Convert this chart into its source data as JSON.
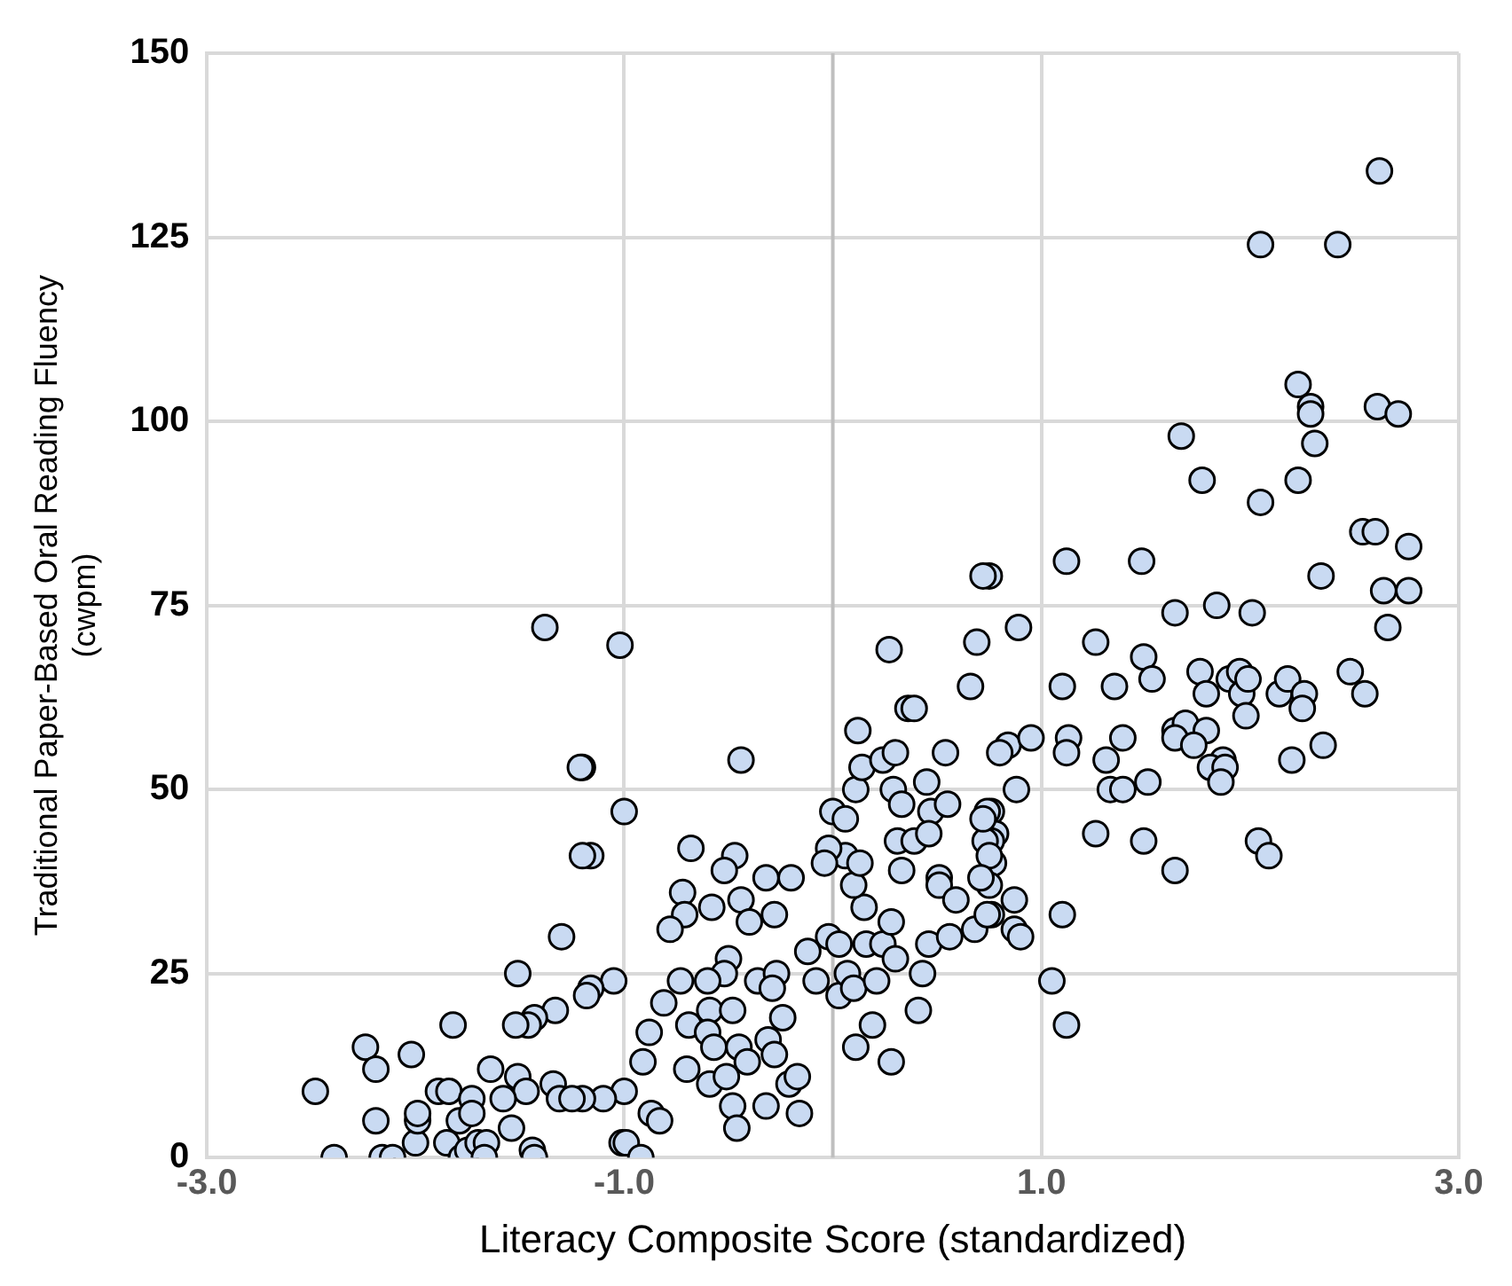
{
  "chart_data": {
    "type": "scatter",
    "xlabel": "Literacy Composite Score (standardized)",
    "ylabel": "Traditional Paper-Based Oral Reading Fluency\n(cwpm)",
    "xlim": [
      -3,
      3
    ],
    "xticks": [
      {
        "value": -3,
        "label": "-3.0"
      },
      {
        "value": -1,
        "label": "-1.0"
      },
      {
        "value": 1,
        "label": "1.0"
      },
      {
        "value": 3,
        "label": "3.0"
      }
    ],
    "ylim": [
      0,
      150
    ],
    "yticks": [
      0,
      25,
      50,
      75,
      100,
      125,
      150
    ],
    "grid": true,
    "marker": "circle",
    "legend": false,
    "ref_lines": [
      {
        "axis": "x",
        "value": 0,
        "color": "#bfbfbf"
      }
    ],
    "series": [
      {
        "color": "#c9daf2",
        "x": [
          2.62,
          2.05,
          2.42,
          2.23,
          2.29,
          2.29,
          2.31,
          2.61,
          2.71,
          1.67,
          1.77,
          2.05,
          2.23,
          1.12,
          1.48,
          2.34,
          2.54,
          2.6,
          2.76,
          2.64,
          2.76,
          0.75,
          0.72,
          1.64,
          1.84,
          2.01,
          2.66,
          0.89,
          1.26,
          1.1,
          1.35,
          1.49,
          1.53,
          0.84,
          0.95,
          1.13,
          1.12,
          1.31,
          1.39,
          1.33,
          1.39,
          1.51,
          0.88,
          0.76,
          0.78,
          0.76,
          0.77,
          0.75,
          0.87,
          0.76,
          0.87,
          0.9,
          1.1,
          1.05,
          1.12,
          1.26,
          1.49,
          1.64,
          2.04,
          2.09,
          1.76,
          1.79,
          1.9,
          1.95,
          1.96,
          1.99,
          1.98,
          2.14,
          2.18,
          2.26,
          2.25,
          2.48,
          2.55,
          2.35,
          2.2,
          1.64,
          1.69,
          1.79,
          1.64,
          1.73,
          1.87,
          1.81,
          1.88,
          1.86,
          -1.02,
          -1.2,
          -0.44,
          -1.0,
          -1.16,
          -0.68,
          -0.47,
          -0.52,
          -0.72,
          -0.71,
          -0.78,
          -0.58,
          -0.44,
          -0.4,
          -0.32,
          -0.2,
          -0.28,
          -0.5,
          -0.52,
          -0.6,
          -0.73,
          -0.36,
          -0.27,
          -0.29,
          -0.81,
          -0.88,
          -0.91,
          -1.05,
          -1.16,
          -1.18,
          -0.69,
          -0.59,
          -0.48,
          -0.6,
          -0.57,
          -0.45,
          -0.41,
          -0.31,
          -0.24,
          -0.28,
          -0.7,
          -0.59,
          -0.51,
          -0.21,
          -0.17,
          -0.32,
          -0.48,
          -0.16,
          -0.46,
          -0.87,
          -0.83,
          -1.0,
          -1.1,
          -1.2,
          -1.01,
          -0.99,
          -0.92,
          -0.12,
          -0.08,
          -0.02,
          0.03,
          0.03,
          0.07,
          0.1,
          0.21,
          0.16,
          0.24,
          0.3,
          0.28,
          0.43,
          0.46,
          0.56,
          0.68,
          0.74,
          0.41,
          0.19,
          0.11,
          0.28,
          0.15,
          0.1,
          0.06,
          -0.02,
          -0.04,
          0.13,
          0.0,
          0.06,
          0.11,
          0.14,
          0.12,
          0.24,
          0.3,
          0.29,
          0.33,
          0.45,
          0.47,
          0.55,
          0.31,
          0.39,
          0.46,
          0.33,
          0.51,
          0.51,
          0.59,
          0.73,
          0.74,
          0.72,
          0.75,
          0.71,
          0.27,
          0.36,
          0.39,
          0.54,
          0.66,
          0.69,
          0.8,
          -1.38,
          -1.21,
          -1.2,
          -1.3,
          -1.51,
          -1.33,
          -1.43,
          -1.46,
          -1.52,
          -1.82,
          -2.24,
          -2.19,
          -2.02,
          -2.48,
          -2.19,
          -2.39,
          -2.16,
          -2.11,
          -2.0,
          -1.99,
          -1.99,
          -1.89,
          -1.84,
          -1.73,
          -1.79,
          -1.73,
          -1.85,
          -1.78,
          -1.75,
          -1.7,
          -1.66,
          -1.67,
          -1.54,
          -1.44,
          -1.43,
          -1.64,
          -1.51,
          -1.47,
          -1.58,
          -1.34,
          -1.31,
          -1.25
        ],
        "values": [
          134,
          124,
          124,
          105,
          102,
          101,
          97,
          102,
          101,
          98,
          92,
          89,
          92,
          81,
          81,
          79,
          85,
          85,
          83,
          77,
          77,
          79,
          79,
          74,
          75,
          74,
          72,
          72,
          70,
          64,
          64,
          68,
          65,
          56,
          57,
          57,
          55,
          54,
          57,
          50,
          50,
          51,
          50,
          47,
          44,
          43,
          40,
          37,
          35,
          33,
          31,
          30,
          33,
          24,
          18,
          44,
          43,
          39,
          43,
          41,
          66,
          63,
          65,
          66,
          63,
          65,
          60,
          63,
          65,
          63,
          61,
          66,
          63,
          56,
          54,
          58,
          59,
          58,
          57,
          56,
          54,
          53,
          53,
          51,
          69.6,
          53,
          54,
          47,
          41,
          42,
          41,
          39,
          36,
          33,
          31,
          34,
          35,
          32,
          38,
          38,
          33,
          27,
          25,
          24,
          24,
          24,
          25,
          23,
          21,
          17,
          13,
          24,
          23,
          22,
          18,
          20,
          20,
          17,
          15,
          15,
          13,
          16,
          19,
          14,
          12,
          10,
          11,
          10,
          11,
          7,
          7,
          6,
          4,
          6,
          5,
          9,
          8,
          8,
          2,
          2,
          0,
          28,
          24,
          30,
          29,
          22,
          25,
          23,
          24,
          29,
          29,
          27,
          32,
          25,
          29,
          30,
          31,
          33,
          20,
          18,
          15,
          13,
          34,
          37,
          41,
          42,
          40,
          40,
          47,
          46,
          50,
          53,
          58,
          54,
          55,
          50,
          48,
          51,
          47,
          48,
          43,
          43,
          44,
          39,
          38,
          37,
          35,
          43,
          47,
          46,
          41,
          38,
          69,
          61,
          61,
          55,
          64,
          70,
          55,
          72,
          53,
          41,
          30,
          25,
          20,
          19,
          18,
          18,
          18,
          15,
          12,
          14,
          9,
          5,
          0,
          0,
          0,
          2,
          5,
          6,
          9,
          9,
          8,
          5,
          6,
          2,
          0,
          1,
          2,
          2,
          0,
          4,
          1,
          0,
          12,
          11,
          9,
          8,
          10,
          8,
          8
        ]
      }
    ]
  }
}
